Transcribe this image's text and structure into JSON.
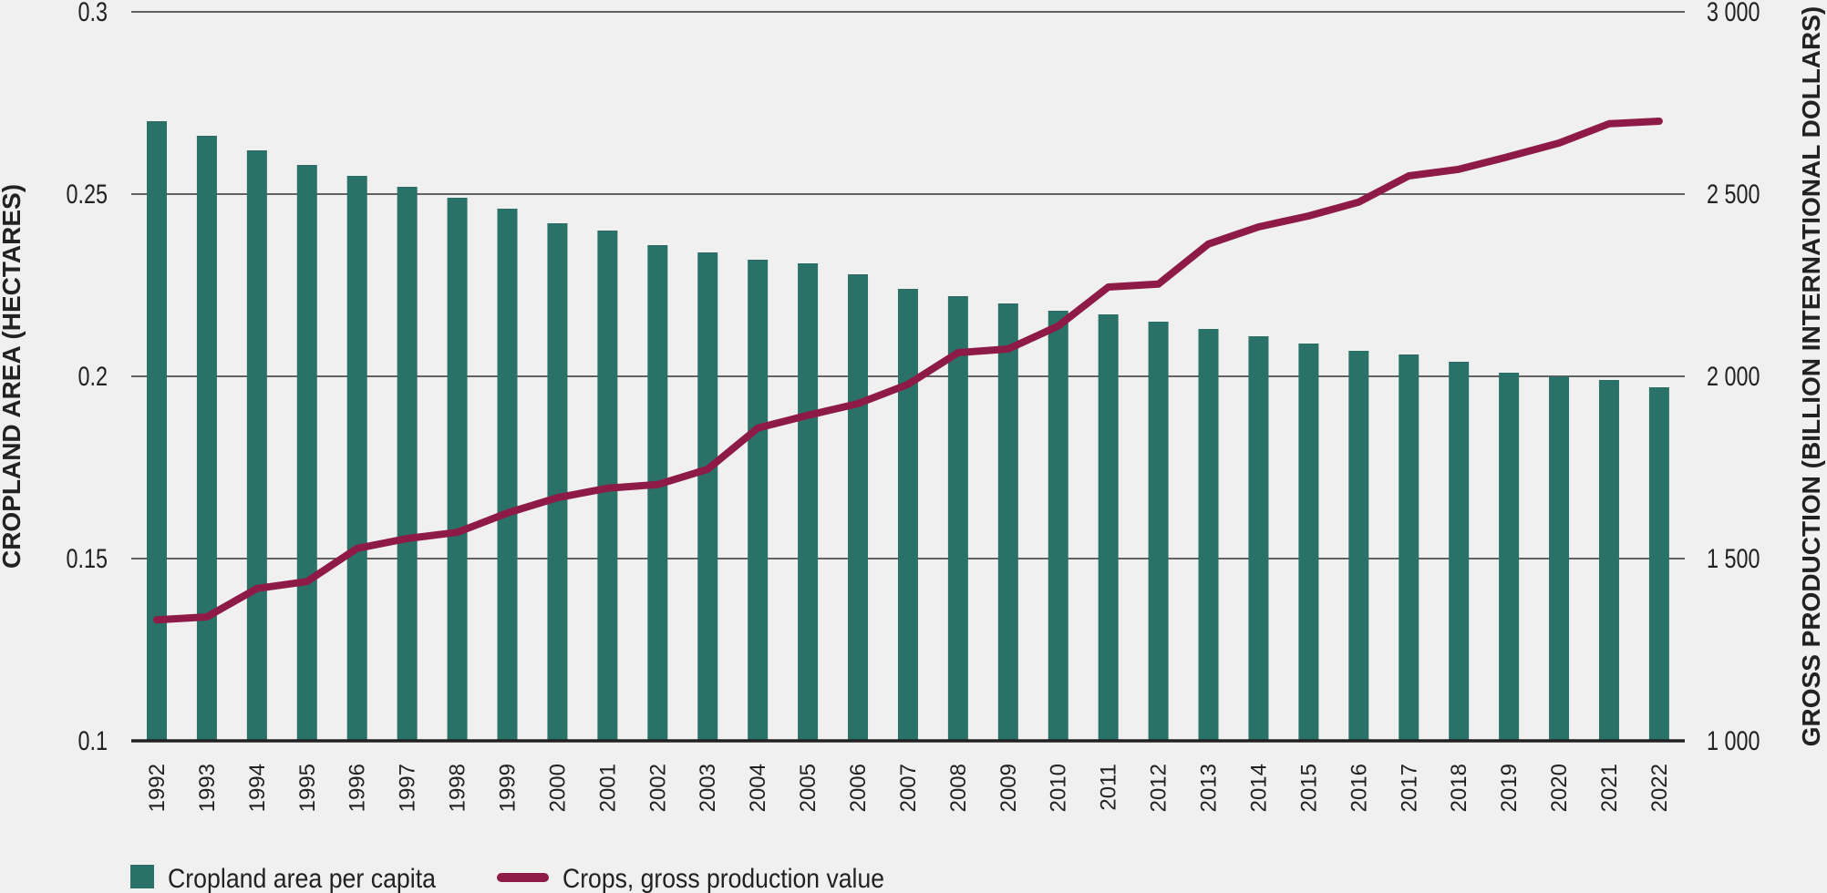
{
  "chart_data": {
    "type": "bar+line",
    "categories": [
      "1992",
      "1993",
      "1994",
      "1995",
      "1996",
      "1997",
      "1998",
      "1999",
      "2000",
      "2001",
      "2002",
      "2003",
      "2004",
      "2005",
      "2006",
      "2007",
      "2008",
      "2009",
      "2010",
      "2011",
      "2012",
      "2013",
      "2014",
      "2015",
      "2016",
      "2017",
      "2018",
      "2019",
      "2020",
      "2021",
      "2022"
    ],
    "series": [
      {
        "name": "Cropland area per capita",
        "type": "bar",
        "axis": "left",
        "color": "#2a7268",
        "values": [
          0.27,
          0.266,
          0.262,
          0.258,
          0.255,
          0.252,
          0.249,
          0.246,
          0.242,
          0.24,
          0.236,
          0.234,
          0.232,
          0.231,
          0.228,
          0.224,
          0.222,
          0.22,
          0.218,
          0.217,
          0.215,
          0.213,
          0.211,
          0.209,
          0.207,
          0.206,
          0.204,
          0.201,
          0.2,
          0.199,
          0.197
        ]
      },
      {
        "name": "Crops, gross production value",
        "type": "line",
        "axis": "right",
        "color": "#8e1a47",
        "values": [
          1332,
          1340,
          1418,
          1437,
          1528,
          1555,
          1572,
          1625,
          1667,
          1693,
          1703,
          1745,
          1858,
          1893,
          1925,
          1978,
          2065,
          2075,
          2138,
          2245,
          2253,
          2363,
          2410,
          2440,
          2478,
          2550,
          2568,
          2603,
          2640,
          2693,
          2700
        ]
      }
    ],
    "ylabel": "CROPLAND AREA (HECTARES)",
    "ylabel_right": "GROSS PRODUCTION (BILLION INTERNATIONAL DOLLARS)",
    "ylim": [
      0.1,
      0.3
    ],
    "ylim_right": [
      1000,
      3000
    ],
    "yticks": [
      "0.1",
      "0.15",
      "0.2",
      "0.25",
      "0.3"
    ],
    "yticks_right": [
      "1 000",
      "1 500",
      "2 000",
      "2 500",
      "3 000"
    ],
    "grid": true,
    "legend_position": "bottom-left"
  }
}
